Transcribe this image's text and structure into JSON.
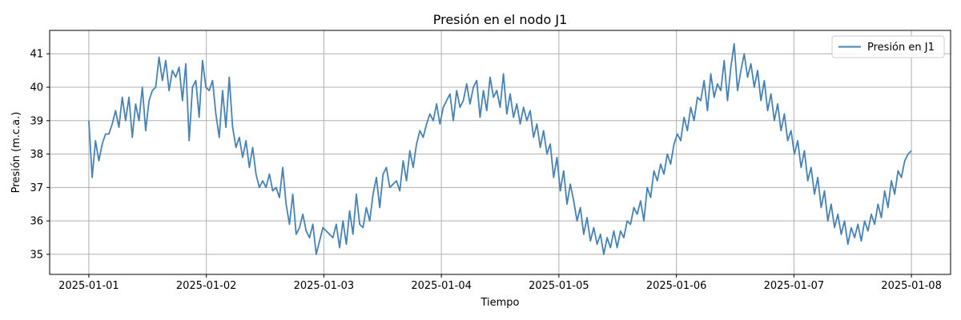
{
  "chart_data": {
    "type": "line",
    "title": "Presión en el nodo J1",
    "xlabel": "Tiempo",
    "ylabel": "Presión (m.c.a.)",
    "xlim": [
      "2024-12-31T16:00",
      "2025-01-08T08:00"
    ],
    "ylim": [
      34.4,
      41.7
    ],
    "x_ticks": [
      "2025-01-01",
      "2025-01-02",
      "2025-01-03",
      "2025-01-04",
      "2025-01-05",
      "2025-01-06",
      "2025-01-07",
      "2025-01-08"
    ],
    "y_ticks": [
      35,
      36,
      37,
      38,
      39,
      40,
      41
    ],
    "grid": true,
    "legend": {
      "placement": "top-right"
    },
    "series": [
      {
        "name": "Presión en J1",
        "color": "#4682b4",
        "x_start": "2025-01-01T00:00",
        "x_end": "2025-01-08T00:00",
        "values": [
          39.0,
          37.3,
          38.4,
          37.8,
          38.3,
          38.6,
          38.6,
          38.9,
          39.3,
          38.8,
          39.7,
          39.0,
          39.7,
          38.5,
          39.5,
          39.0,
          40.0,
          38.7,
          39.6,
          39.9,
          40.0,
          40.9,
          40.2,
          40.8,
          39.9,
          40.5,
          40.3,
          40.6,
          39.6,
          40.7,
          38.4,
          40.0,
          40.2,
          39.1,
          40.8,
          40.0,
          39.9,
          40.2,
          39.2,
          38.5,
          39.9,
          38.8,
          40.3,
          38.8,
          38.2,
          38.5,
          37.9,
          38.4,
          37.6,
          38.2,
          37.4,
          37.0,
          37.2,
          37.0,
          37.4,
          36.9,
          37.0,
          36.7,
          37.6,
          36.5,
          35.9,
          36.8,
          35.6,
          35.8,
          36.2,
          35.7,
          35.5,
          35.9,
          35.0,
          35.4,
          35.8,
          35.7,
          35.6,
          35.5,
          35.9,
          35.2,
          36.0,
          35.3,
          36.3,
          35.6,
          36.8,
          35.9,
          35.8,
          36.4,
          36.0,
          36.8,
          37.3,
          36.4,
          37.4,
          37.6,
          37.0,
          37.1,
          37.2,
          36.9,
          37.8,
          37.2,
          38.1,
          37.6,
          38.3,
          38.7,
          38.5,
          38.9,
          39.2,
          39.0,
          39.5,
          38.9,
          39.4,
          39.6,
          39.8,
          39.0,
          39.9,
          39.4,
          39.6,
          40.1,
          39.5,
          40.0,
          40.2,
          39.1,
          39.9,
          39.3,
          40.3,
          39.7,
          39.9,
          39.4,
          40.4,
          39.2,
          39.8,
          39.1,
          39.5,
          38.9,
          39.4,
          39.0,
          39.3,
          38.5,
          38.9,
          38.2,
          38.7,
          38.0,
          38.3,
          37.3,
          37.9,
          36.9,
          37.5,
          36.5,
          37.1,
          36.6,
          36.0,
          36.4,
          35.6,
          36.1,
          35.4,
          35.8,
          35.3,
          35.6,
          35.0,
          35.5,
          35.2,
          35.7,
          35.2,
          35.7,
          35.5,
          36.0,
          35.9,
          36.4,
          36.2,
          36.6,
          36.0,
          37.0,
          36.7,
          37.5,
          37.2,
          37.7,
          37.4,
          38.0,
          37.7,
          38.3,
          38.6,
          38.4,
          39.1,
          38.7,
          39.4,
          39.0,
          39.7,
          39.6,
          40.2,
          39.3,
          40.4,
          39.7,
          40.1,
          39.9,
          40.8,
          39.6,
          40.6,
          41.3,
          39.9,
          40.5,
          41.0,
          40.3,
          40.7,
          40.0,
          40.5,
          39.6,
          40.2,
          39.3,
          39.8,
          39.0,
          39.5,
          38.7,
          39.2,
          38.4,
          38.7,
          38.0,
          38.4,
          37.6,
          38.1,
          37.2,
          37.6,
          36.8,
          37.3,
          36.4,
          36.9,
          36.0,
          36.5,
          35.8,
          36.2,
          35.6,
          36.0,
          35.3,
          35.8,
          35.5,
          35.9,
          35.4,
          36.0,
          35.7,
          36.2,
          35.9,
          36.5,
          36.1,
          36.9,
          36.4,
          37.2,
          36.8,
          37.5,
          37.3,
          37.8,
          38.0,
          38.1
        ]
      }
    ]
  }
}
